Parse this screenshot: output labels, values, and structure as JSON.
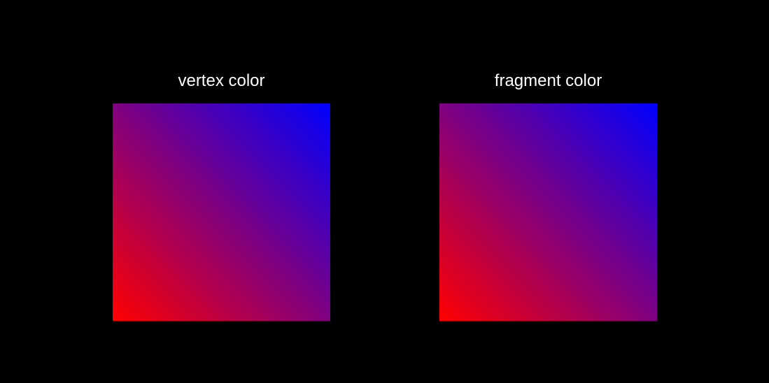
{
  "panels": [
    {
      "title": "vertex color",
      "colors": {
        "top_left": "#800080",
        "top_right": "#0000ff",
        "bottom_left": "#ff0000",
        "bottom_right": "#800080"
      }
    },
    {
      "title": "fragment color",
      "colors": {
        "top_left": "#800080",
        "top_right": "#0000ff",
        "bottom_left": "#ff0000",
        "bottom_right": "#800080"
      }
    }
  ]
}
